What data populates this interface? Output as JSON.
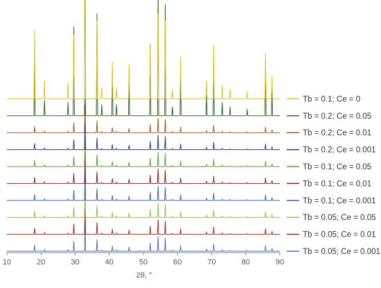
{
  "chart_data": {
    "type": "line",
    "title": "",
    "xlabel": "2θ, °",
    "ylabel": "",
    "xlim": [
      10,
      90
    ],
    "xticks": [
      10,
      20,
      30,
      40,
      50,
      60,
      70,
      80,
      90
    ],
    "y_axis_shown": false,
    "grid": false,
    "legend_position": "right",
    "stacked_offset_patterns": true,
    "peaks_2theta": [
      18.1,
      21.0,
      27.9,
      29.6,
      32.9,
      36.4,
      37.8,
      40.9,
      42.1,
      45.8,
      52.0,
      54.3,
      56.4,
      58.5,
      60.9,
      68.5,
      70.6,
      73.1,
      75.4,
      80.4,
      85.8,
      87.7
    ],
    "series": [
      {
        "name": "Tb = 0.1; Ce = 0",
        "color": "#E6C21A",
        "values": [
          0.3,
          0.08,
          0.07,
          0.28,
          1.0,
          0.34,
          0.05,
          0.16,
          0.05,
          0.15,
          0.24,
          0.37,
          0.34,
          0.04,
          0.18,
          0.08,
          0.23,
          0.06,
          0.04,
          0.03,
          0.2,
          0.1
        ]
      },
      {
        "name": "Tb = 0.2; Ce = 0.05",
        "color": "#2E6B22",
        "values": [
          0.26,
          0.07,
          0.06,
          0.4,
          1.0,
          0.46,
          0.05,
          0.2,
          0.05,
          0.17,
          0.32,
          0.56,
          0.5,
          0.04,
          0.22,
          0.09,
          0.27,
          0.06,
          0.04,
          0.03,
          0.22,
          0.11
        ]
      },
      {
        "name": "Tb = 0.2; Ce = 0.01",
        "color": "#A8571B",
        "values": [
          0.22,
          0.06,
          0.05,
          0.36,
          1.0,
          0.42,
          0.04,
          0.18,
          0.05,
          0.15,
          0.3,
          0.52,
          0.47,
          0.04,
          0.2,
          0.08,
          0.26,
          0.05,
          0.03,
          0.03,
          0.2,
          0.1
        ]
      },
      {
        "name": "Tb = 0.2; Ce = 0.001",
        "color": "#1E3E85",
        "values": [
          0.22,
          0.06,
          0.05,
          0.36,
          1.0,
          0.42,
          0.04,
          0.18,
          0.05,
          0.15,
          0.3,
          0.52,
          0.47,
          0.04,
          0.2,
          0.08,
          0.26,
          0.05,
          0.03,
          0.03,
          0.2,
          0.1
        ]
      },
      {
        "name": "Tb = 0.1; Ce = 0.05",
        "color": "#5E9E3A",
        "values": [
          0.22,
          0.06,
          0.05,
          0.36,
          1.0,
          0.42,
          0.04,
          0.18,
          0.05,
          0.15,
          0.3,
          0.52,
          0.47,
          0.04,
          0.2,
          0.08,
          0.26,
          0.05,
          0.03,
          0.03,
          0.2,
          0.1
        ]
      },
      {
        "name": "Tb = 0.1; Ce = 0.01",
        "color": "#8B2418",
        "values": [
          0.22,
          0.06,
          0.05,
          0.36,
          1.0,
          0.42,
          0.04,
          0.18,
          0.05,
          0.15,
          0.3,
          0.52,
          0.47,
          0.04,
          0.2,
          0.08,
          0.26,
          0.05,
          0.03,
          0.03,
          0.2,
          0.1
        ]
      },
      {
        "name": "Tb = 0.1; Ce = 0.001",
        "color": "#3D63B8",
        "values": [
          0.22,
          0.06,
          0.05,
          0.36,
          1.0,
          0.42,
          0.04,
          0.18,
          0.05,
          0.15,
          0.3,
          0.52,
          0.47,
          0.04,
          0.2,
          0.08,
          0.26,
          0.05,
          0.03,
          0.03,
          0.2,
          0.1
        ]
      },
      {
        "name": "Tb = 0.05; Ce = 0.05",
        "color": "#8CC44E",
        "values": [
          0.22,
          0.06,
          0.05,
          0.36,
          1.0,
          0.42,
          0.04,
          0.18,
          0.05,
          0.15,
          0.3,
          0.52,
          0.47,
          0.04,
          0.2,
          0.08,
          0.26,
          0.05,
          0.03,
          0.03,
          0.2,
          0.1
        ]
      },
      {
        "name": "Tb = 0.05; Ce = 0.01",
        "color": "#B0291E",
        "values": [
          0.22,
          0.06,
          0.05,
          0.36,
          1.0,
          0.42,
          0.04,
          0.18,
          0.05,
          0.15,
          0.3,
          0.52,
          0.47,
          0.04,
          0.2,
          0.08,
          0.26,
          0.05,
          0.03,
          0.03,
          0.2,
          0.1
        ]
      },
      {
        "name": "Tb = 0.05; Ce = 0.001",
        "color": "#4A72C8",
        "values": [
          0.22,
          0.06,
          0.05,
          0.36,
          1.0,
          0.42,
          0.04,
          0.18,
          0.05,
          0.15,
          0.3,
          0.52,
          0.47,
          0.04,
          0.2,
          0.08,
          0.26,
          0.05,
          0.03,
          0.03,
          0.2,
          0.1
        ]
      }
    ]
  }
}
